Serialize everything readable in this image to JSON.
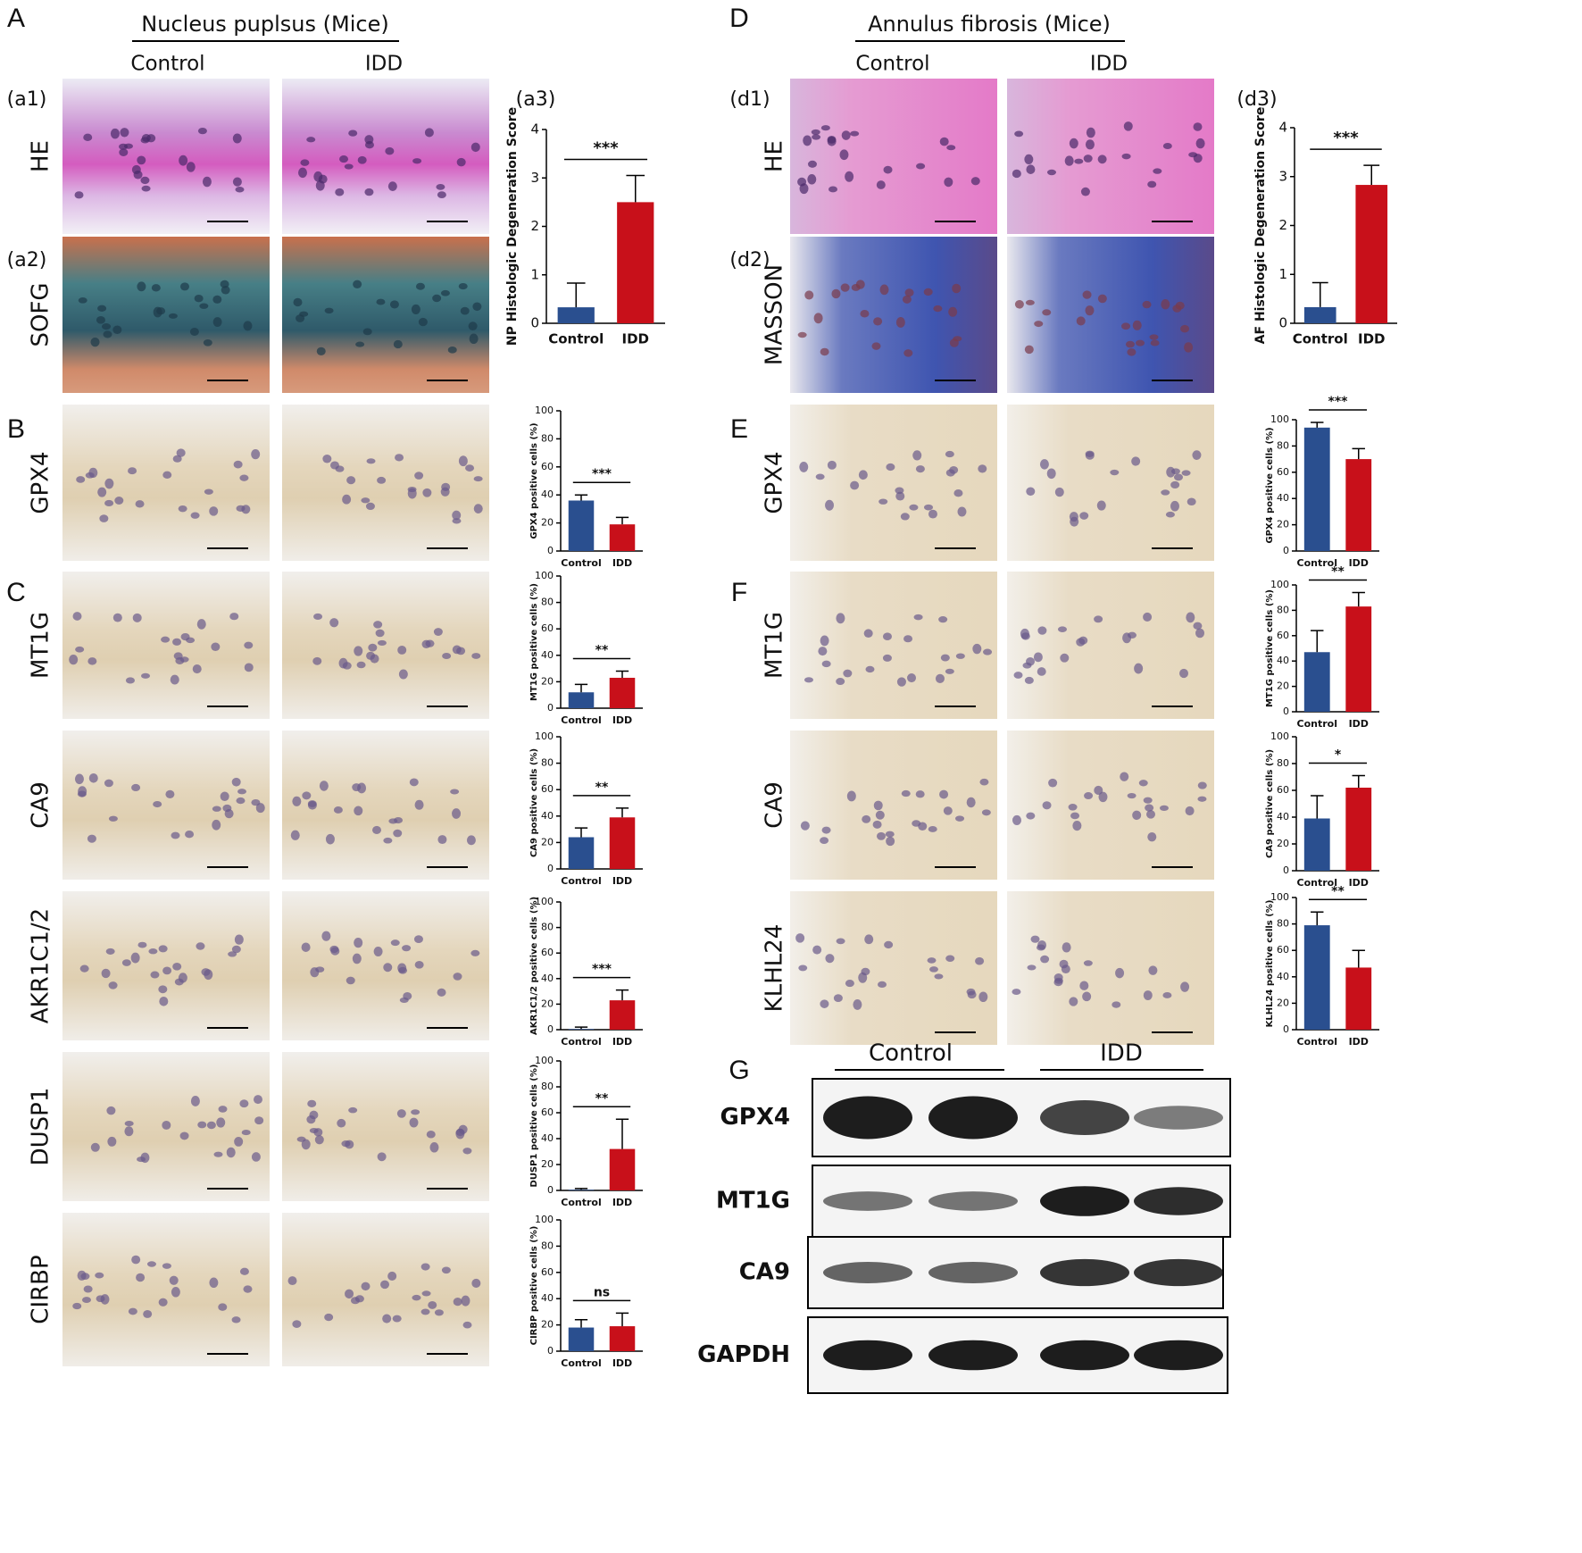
{
  "panel_a": {
    "letter": "A",
    "title": "Nucleus puplsus (Mice)",
    "columns": [
      "Control",
      "IDD"
    ],
    "tags": [
      "(a1)",
      "(a2)",
      "(a3)"
    ],
    "rows": [
      "HE",
      "SOFG",
      "GPX4",
      "MT1G",
      "CA9",
      "AKR1C1/2",
      "DUSP1",
      "CIRBP"
    ],
    "letter_b": "B",
    "letter_c": "C"
  },
  "panel_d": {
    "letter": "D",
    "title": "Annulus fibrosis (Mice)",
    "columns": [
      "Control",
      "IDD"
    ],
    "tags": [
      "(d1)",
      "(d2)",
      "(d3)"
    ],
    "rows": [
      "HE",
      "MASSON",
      "GPX4",
      "MT1G",
      "CA9",
      "KLHL24"
    ],
    "letter_e": "E",
    "letter_f": "F"
  },
  "panel_g": {
    "letter": "G",
    "groups": [
      "Control",
      "IDD"
    ],
    "rows": [
      "GPX4",
      "MT1G",
      "CA9",
      "GAPDH"
    ]
  },
  "chart_data": [
    {
      "type": "bar",
      "ylabel": "NP Histologic Degeneration Score",
      "categories": [
        "Control",
        "IDD"
      ],
      "values": [
        0.33,
        2.5
      ],
      "errors": [
        0.5,
        0.55
      ],
      "colors": [
        "#2a4f8f",
        "#c8101a"
      ],
      "ylim": [
        0,
        4
      ],
      "yticks": [
        0,
        1,
        2,
        3,
        4
      ],
      "annotation": "***"
    },
    {
      "type": "bar",
      "ylabel": "GPX4 positive cells (%)",
      "categories": [
        "Control",
        "IDD"
      ],
      "values": [
        36,
        19
      ],
      "errors": [
        4,
        5
      ],
      "colors": [
        "#2a4f8f",
        "#c8101a"
      ],
      "ylim": [
        0,
        100
      ],
      "yticks": [
        0,
        20,
        40,
        60,
        80,
        100
      ],
      "annotation": "***"
    },
    {
      "type": "bar",
      "ylabel": "MT1G positive cells (%)",
      "categories": [
        "Control",
        "IDD"
      ],
      "values": [
        12,
        23
      ],
      "errors": [
        6,
        5
      ],
      "colors": [
        "#2a4f8f",
        "#c8101a"
      ],
      "ylim": [
        0,
        100
      ],
      "yticks": [
        0,
        20,
        40,
        60,
        80,
        100
      ],
      "annotation": "**"
    },
    {
      "type": "bar",
      "ylabel": "CA9 positive cells (%)",
      "categories": [
        "Control",
        "IDD"
      ],
      "values": [
        24,
        39
      ],
      "errors": [
        7,
        7
      ],
      "colors": [
        "#2a4f8f",
        "#c8101a"
      ],
      "ylim": [
        0,
        100
      ],
      "yticks": [
        0,
        20,
        40,
        60,
        80,
        100
      ],
      "annotation": "**"
    },
    {
      "type": "bar",
      "ylabel": "AKR1C1/2 positive cells (%)",
      "categories": [
        "Control",
        "IDD"
      ],
      "values": [
        0.5,
        23
      ],
      "errors": [
        1.5,
        8
      ],
      "colors": [
        "#2a4f8f",
        "#c8101a"
      ],
      "ylim": [
        0,
        100
      ],
      "yticks": [
        0,
        20,
        40,
        60,
        80,
        100
      ],
      "annotation": "***"
    },
    {
      "type": "bar",
      "ylabel": "DUSP1 positive cells (%)",
      "categories": [
        "Control",
        "IDD"
      ],
      "values": [
        0.5,
        32
      ],
      "errors": [
        1,
        23
      ],
      "colors": [
        "#2a4f8f",
        "#c8101a"
      ],
      "ylim": [
        0,
        100
      ],
      "yticks": [
        0,
        20,
        40,
        60,
        80,
        100
      ],
      "annotation": "**"
    },
    {
      "type": "bar",
      "ylabel": "CIRBP positive cells (%)",
      "categories": [
        "Control",
        "IDD"
      ],
      "values": [
        18,
        19
      ],
      "errors": [
        6,
        10
      ],
      "colors": [
        "#2a4f8f",
        "#c8101a"
      ],
      "ylim": [
        0,
        100
      ],
      "yticks": [
        0,
        20,
        40,
        60,
        80,
        100
      ],
      "annotation": "ns"
    },
    {
      "type": "bar",
      "ylabel": "AF Histologic Degeneration Score",
      "categories": [
        "Control",
        "IDD"
      ],
      "values": [
        0.33,
        2.83
      ],
      "errors": [
        0.5,
        0.4
      ],
      "colors": [
        "#2a4f8f",
        "#c8101a"
      ],
      "ylim": [
        0,
        4
      ],
      "yticks": [
        0,
        1,
        2,
        3,
        4
      ],
      "annotation": "***"
    },
    {
      "type": "bar",
      "ylabel": "GPX4 positive cells (%)",
      "categories": [
        "Control",
        "IDD"
      ],
      "values": [
        94,
        70
      ],
      "errors": [
        4,
        8
      ],
      "colors": [
        "#2a4f8f",
        "#c8101a"
      ],
      "ylim": [
        0,
        100
      ],
      "yticks": [
        0,
        20,
        40,
        60,
        80,
        100
      ],
      "annotation": "***"
    },
    {
      "type": "bar",
      "ylabel": "MT1G positive cells (%)",
      "categories": [
        "Control",
        "IDD"
      ],
      "values": [
        47,
        83
      ],
      "errors": [
        17,
        11
      ],
      "colors": [
        "#2a4f8f",
        "#c8101a"
      ],
      "ylim": [
        0,
        100
      ],
      "yticks": [
        0,
        20,
        40,
        60,
        80,
        100
      ],
      "annotation": "**"
    },
    {
      "type": "bar",
      "ylabel": "CA9 positive cells (%)",
      "categories": [
        "Control",
        "IDD"
      ],
      "values": [
        39,
        62
      ],
      "errors": [
        17,
        9
      ],
      "colors": [
        "#2a4f8f",
        "#c8101a"
      ],
      "ylim": [
        0,
        100
      ],
      "yticks": [
        0,
        20,
        40,
        60,
        80,
        100
      ],
      "annotation": "*"
    },
    {
      "type": "bar",
      "ylabel": "KLHL24 positive cells (%)",
      "categories": [
        "Control",
        "IDD"
      ],
      "values": [
        79,
        47
      ],
      "errors": [
        10,
        13
      ],
      "colors": [
        "#2a4f8f",
        "#c8101a"
      ],
      "ylim": [
        0,
        100
      ],
      "yticks": [
        0,
        20,
        40,
        60,
        80,
        100
      ],
      "annotation": "**"
    }
  ]
}
